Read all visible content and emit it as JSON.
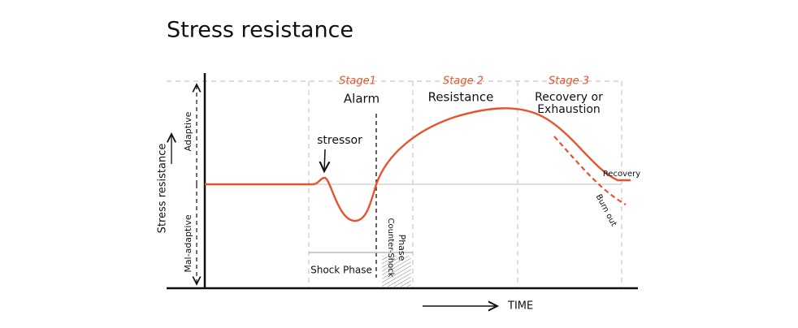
{
  "title": "Stress resistance",
  "left_axis": {
    "label": "Stress resistance",
    "upper": "Adaptive",
    "lower": "Mal-adaptive"
  },
  "stages": [
    {
      "stage": "Stage1",
      "name": [
        "Alarm"
      ]
    },
    {
      "stage": "Stage 2",
      "name": [
        "Resistance"
      ]
    },
    {
      "stage": "Stage 3",
      "name": [
        "Recovery or",
        "Exhaustion"
      ]
    }
  ],
  "annotations": {
    "stressor": "stressor",
    "shock_phase": "Shock Phase",
    "counter_shock_phase": [
      "Counter-Shock",
      "Phase"
    ],
    "recovery": "Recovery",
    "burn_out": "Burn out"
  },
  "x_axis_label": "TIME"
}
